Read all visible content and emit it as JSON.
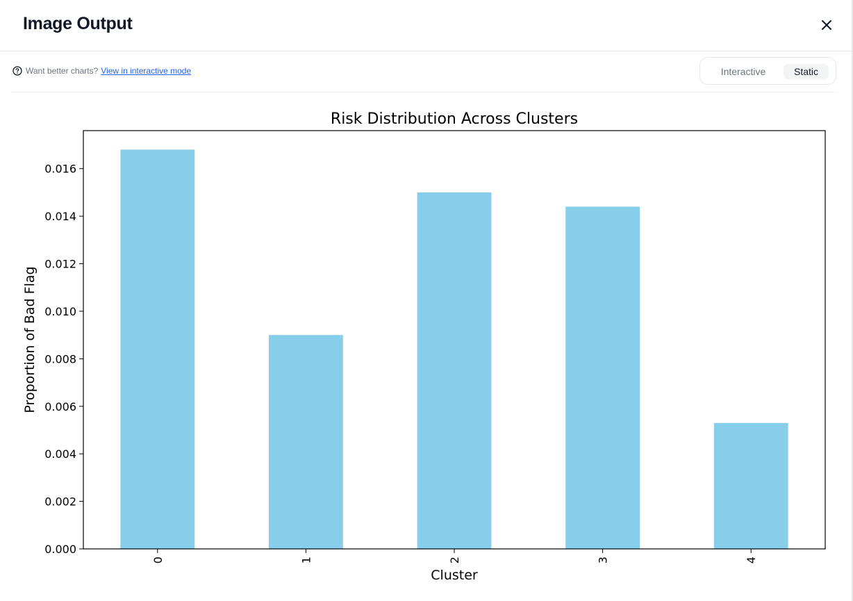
{
  "modal": {
    "title": "Image Output",
    "close_icon": "close-icon"
  },
  "toolbar": {
    "hint_icon": "help-circle-icon",
    "hint_text": "Want better charts?",
    "hint_link": "View in interactive mode",
    "toggle": {
      "options": [
        "Interactive",
        "Static"
      ],
      "selected": "Static"
    }
  },
  "colors": {
    "bar": "#87ceeb",
    "link": "#2563eb"
  },
  "chart_data": {
    "type": "bar",
    "title": "Risk Distribution Across Clusters",
    "xlabel": "Cluster",
    "ylabel": "Proportion of Bad Flag",
    "categories": [
      "0",
      "1",
      "2",
      "3",
      "4"
    ],
    "values": [
      0.0168,
      0.009,
      0.015,
      0.0144,
      0.0053
    ],
    "ylim": [
      0,
      0.0176
    ],
    "yticks": [
      "0.000",
      "0.002",
      "0.004",
      "0.006",
      "0.008",
      "0.010",
      "0.012",
      "0.014",
      "0.016"
    ],
    "xtick_rotation": "vertical",
    "grid": false,
    "legend": "none"
  }
}
